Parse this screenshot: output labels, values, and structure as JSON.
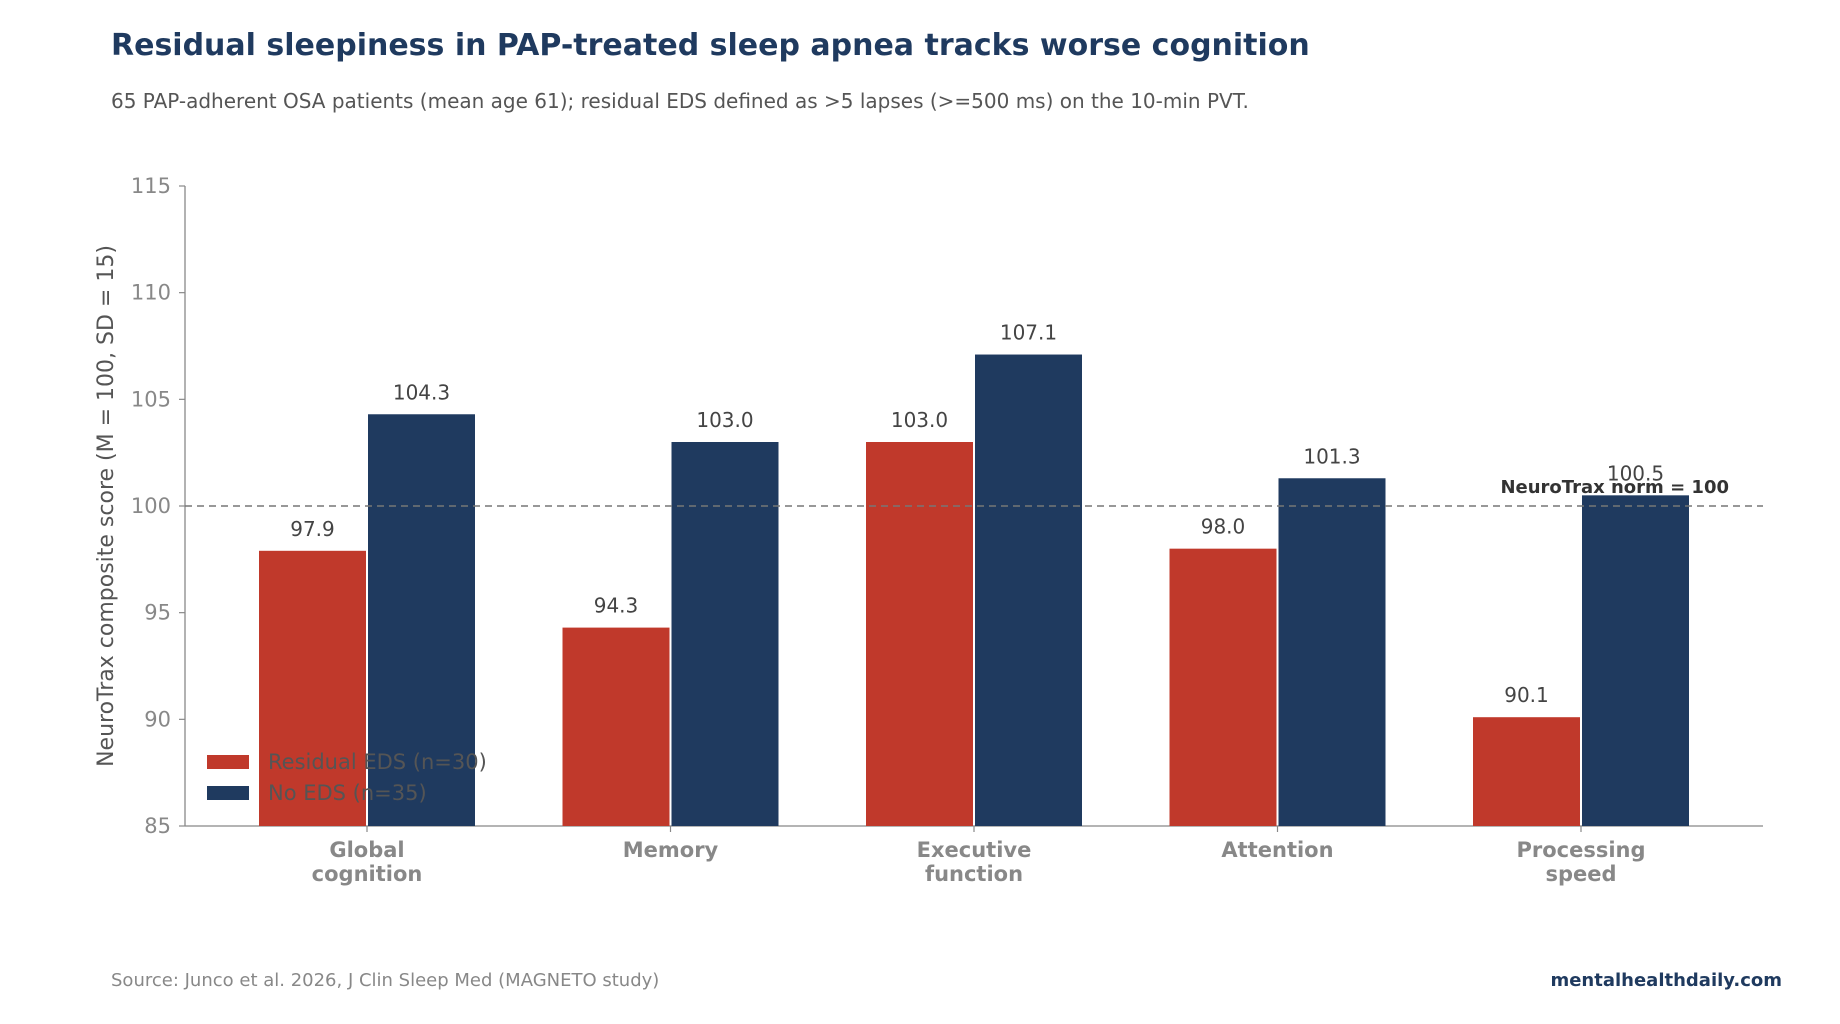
{
  "header": {
    "title": "Residual sleepiness in PAP-treated sleep apnea tracks worse cognition",
    "subtitle": "65 PAP-adherent OSA patients (mean age 61); residual EDS defined as >5 lapses (>=500 ms) on the 10-min PVT."
  },
  "footer": {
    "source": "Source: Junco et al. 2026, J Clin Sleep Med (MAGNETO study)",
    "brand": "mentalhealthdaily.com"
  },
  "colors": {
    "residual": "#c0392b",
    "no_eds": "#1f3a5f",
    "title": "#1f3a5f",
    "axis": "#888888",
    "label": "#444444",
    "refline": "#777777"
  },
  "chart_data": {
    "type": "bar",
    "categories": [
      [
        "Global",
        "cognition"
      ],
      [
        "Memory"
      ],
      [
        "Executive",
        "function"
      ],
      [
        "Attention"
      ],
      [
        "Processing",
        "speed"
      ]
    ],
    "series": [
      {
        "name": "Residual EDS (n=30)",
        "values": [
          97.9,
          94.3,
          103.0,
          98.0,
          90.1
        ],
        "color": "#c0392b"
      },
      {
        "name": "No EDS (n=35)",
        "values": [
          104.3,
          103.0,
          107.1,
          101.3,
          100.5
        ],
        "color": "#1f3a5f"
      }
    ],
    "ylabel": "NeuroTrax composite score (M = 100, SD = 15)",
    "xlabel": "",
    "ylim": [
      85,
      115
    ],
    "yticks": [
      85,
      90,
      95,
      100,
      105,
      110,
      115
    ],
    "reference_line": {
      "value": 100,
      "label": "NeuroTrax norm = 100"
    },
    "legend_position": "lower-left",
    "grid": false
  }
}
